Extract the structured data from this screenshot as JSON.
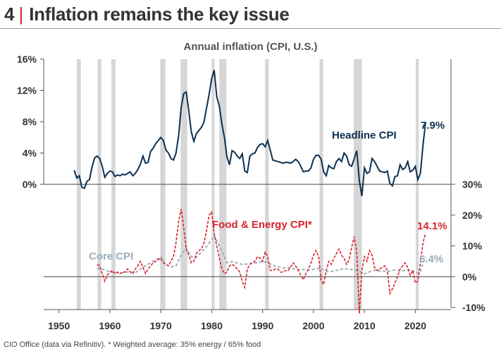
{
  "header": {
    "number": "4",
    "separator": "|",
    "title": "Inflation remains the key issue"
  },
  "footer": {
    "source": "CIO Office (data via Refinitiv).  * Weighted average: 35%  energy / 65%  food"
  },
  "colors": {
    "headline": "#0d3050",
    "food_energy": "#d9232d",
    "core": "#9aabb8",
    "recession": "#d6d6d6",
    "axis": "#555555"
  },
  "chart_data": {
    "type": "line",
    "title": "Annual inflation (CPI, U.S.)",
    "x_ticks": [
      1950,
      1960,
      1970,
      1980,
      1990,
      2000,
      2010,
      2020
    ],
    "xlim": [
      1947,
      2027
    ],
    "recessions": [
      [
        1953.5,
        1954.3
      ],
      [
        1957.6,
        1958.3
      ],
      [
        1960.3,
        1961.1
      ],
      [
        1969.9,
        1970.9
      ],
      [
        1973.9,
        1975.2
      ],
      [
        1980.0,
        1980.5
      ],
      [
        1981.5,
        1982.9
      ],
      [
        1990.5,
        1991.2
      ],
      [
        2001.2,
        2001.9
      ],
      [
        2007.9,
        2009.5
      ],
      [
        2020.1,
        2020.4
      ]
    ],
    "panels": [
      {
        "position": "top",
        "y_ticks_left": [
          "16%",
          "12%",
          "8%",
          "4%",
          "0%"
        ],
        "y_tick_values": [
          16,
          12,
          8,
          4,
          0
        ],
        "ylim": [
          0,
          16
        ],
        "series": [
          {
            "name": "Headline CPI",
            "end_label": "7.9%",
            "x": [
              1953.0,
              1953.5,
              1954.0,
              1954.5,
              1955.0,
              1955.5,
              1956.0,
              1956.5,
              1957.0,
              1957.5,
              1958.0,
              1958.5,
              1959.0,
              1959.5,
              1960.0,
              1960.5,
              1961.0,
              1961.5,
              1962.0,
              1962.5,
              1963.0,
              1963.5,
              1964.0,
              1964.5,
              1965.0,
              1965.5,
              1966.0,
              1966.5,
              1967.0,
              1967.5,
              1968.0,
              1968.5,
              1969.0,
              1969.5,
              1970.0,
              1970.5,
              1971.0,
              1971.5,
              1972.0,
              1972.5,
              1973.0,
              1973.5,
              1974.0,
              1974.5,
              1975.0,
              1975.5,
              1976.0,
              1976.5,
              1977.0,
              1977.5,
              1978.0,
              1978.5,
              1979.0,
              1979.5,
              1980.0,
              1980.5,
              1981.0,
              1981.5,
              1982.0,
              1982.5,
              1983.0,
              1983.5,
              1984.0,
              1984.5,
              1985.0,
              1985.5,
              1986.0,
              1986.5,
              1987.0,
              1987.5,
              1988.0,
              1988.5,
              1989.0,
              1989.5,
              1990.0,
              1990.5,
              1991.0,
              1991.5,
              1992.0,
              1992.5,
              1993.0,
              1993.5,
              1994.0,
              1994.5,
              1995.0,
              1995.5,
              1996.0,
              1996.5,
              1997.0,
              1997.5,
              1998.0,
              1998.5,
              1999.0,
              1999.5,
              2000.0,
              2000.5,
              2001.0,
              2001.5,
              2002.0,
              2002.5,
              2003.0,
              2003.5,
              2004.0,
              2004.5,
              2005.0,
              2005.5,
              2006.0,
              2006.5,
              2007.0,
              2007.5,
              2008.0,
              2008.5,
              2009.0,
              2009.5,
              2010.0,
              2010.5,
              2011.0,
              2011.5,
              2012.0,
              2012.5,
              2013.0,
              2013.5,
              2014.0,
              2014.5,
              2015.0,
              2015.5,
              2016.0,
              2016.5,
              2017.0,
              2017.5,
              2018.0,
              2018.5,
              2019.0,
              2019.5,
              2020.0,
              2020.5,
              2021.0,
              2021.5,
              2022.0
            ],
            "values": [
              1.8,
              0.8,
              1.1,
              -0.4,
              -0.5,
              0.4,
              0.6,
              2.2,
              3.4,
              3.6,
              3.3,
              2.3,
              0.9,
              1.4,
              1.7,
              1.6,
              1.0,
              1.2,
              1.1,
              1.3,
              1.2,
              1.4,
              1.6,
              1.1,
              1.4,
              1.9,
              2.6,
              3.6,
              2.7,
              2.8,
              4.2,
              4.6,
              5.2,
              5.6,
              6.0,
              5.6,
              4.4,
              4.0,
              3.3,
              3.1,
              4.0,
              6.2,
              9.8,
              11.6,
              11.8,
              9.4,
              6.7,
              5.5,
              6.5,
              6.9,
              7.3,
              8.0,
              9.8,
              11.5,
              13.5,
              14.6,
              11.2,
              10.0,
              7.7,
              6.0,
              3.5,
              2.5,
              4.3,
              4.1,
              3.6,
              3.3,
              3.9,
              1.7,
              1.5,
              3.6,
              3.9,
              4.0,
              4.7,
              5.1,
              5.2,
              4.8,
              5.6,
              4.4,
              3.1,
              3.0,
              2.9,
              2.8,
              2.7,
              2.8,
              2.8,
              2.7,
              2.9,
              3.2,
              2.9,
              2.3,
              1.6,
              1.7,
              1.7,
              2.1,
              3.2,
              3.7,
              3.7,
              3.2,
              1.6,
              1.1,
              2.4,
              2.1,
              2.0,
              2.9,
              3.3,
              2.9,
              4.0,
              3.6,
              2.5,
              2.3,
              3.3,
              4.3,
              0.5,
              -1.5,
              2.1,
              1.4,
              1.6,
              3.3,
              2.9,
              2.3,
              1.7,
              1.6,
              1.5,
              1.7,
              0.1,
              -0.2,
              1.0,
              1.1,
              2.5,
              1.9,
              2.1,
              2.9,
              1.6,
              1.8,
              2.3,
              0.6,
              1.4,
              5.0,
              7.9
            ]
          }
        ]
      },
      {
        "position": "bottom",
        "y_ticks_right": [
          "30%",
          "20%",
          "10%",
          "0%",
          "-10%"
        ],
        "y_tick_values": [
          30,
          20,
          10,
          0,
          -10
        ],
        "ylim": [
          -10,
          30
        ],
        "series": [
          {
            "name": "Food & Energy CPI*",
            "end_label": "14.1%",
            "x": [
              1957.5,
              1958.0,
              1958.5,
              1959.0,
              1959.5,
              1960.0,
              1960.5,
              1961.0,
              1961.5,
              1962.0,
              1962.5,
              1963.0,
              1963.5,
              1964.0,
              1964.5,
              1965.0,
              1965.5,
              1966.0,
              1966.5,
              1967.0,
              1967.5,
              1968.0,
              1968.5,
              1969.0,
              1969.5,
              1970.0,
              1970.5,
              1971.0,
              1971.5,
              1972.0,
              1972.5,
              1973.0,
              1973.5,
              1974.0,
              1974.5,
              1975.0,
              1975.5,
              1976.0,
              1976.5,
              1977.0,
              1977.5,
              1978.0,
              1978.5,
              1979.0,
              1979.5,
              1980.0,
              1980.5,
              1981.0,
              1981.5,
              1982.0,
              1982.5,
              1983.0,
              1983.5,
              1984.0,
              1984.5,
              1985.0,
              1985.5,
              1986.0,
              1986.5,
              1987.0,
              1987.5,
              1988.0,
              1988.5,
              1989.0,
              1989.5,
              1990.0,
              1990.5,
              1991.0,
              1991.5,
              1992.0,
              1992.5,
              1993.0,
              1993.5,
              1994.0,
              1994.5,
              1995.0,
              1995.5,
              1996.0,
              1996.5,
              1997.0,
              1997.5,
              1998.0,
              1998.5,
              1999.0,
              1999.5,
              2000.0,
              2000.5,
              2001.0,
              2001.5,
              2002.0,
              2002.5,
              2003.0,
              2003.5,
              2004.0,
              2004.5,
              2005.0,
              2005.5,
              2006.0,
              2006.5,
              2007.0,
              2007.5,
              2008.0,
              2008.5,
              2009.0,
              2009.5,
              2010.0,
              2010.5,
              2011.0,
              2011.5,
              2012.0,
              2012.5,
              2013.0,
              2013.5,
              2014.0,
              2014.5,
              2015.0,
              2015.5,
              2016.0,
              2016.5,
              2017.0,
              2017.5,
              2018.0,
              2018.5,
              2019.0,
              2019.5,
              2020.0,
              2020.5,
              2021.0,
              2021.5,
              2022.0
            ],
            "values": [
              4.0,
              3.5,
              1.0,
              -1.5,
              0.5,
              1.5,
              2.0,
              1.0,
              1.5,
              1.0,
              1.5,
              1.5,
              2.5,
              1.5,
              1.0,
              2.5,
              3.5,
              5.0,
              3.0,
              1.0,
              2.5,
              3.5,
              4.5,
              5.0,
              5.5,
              6.0,
              4.5,
              4.0,
              3.5,
              5.0,
              6.5,
              11.0,
              18.0,
              22.0,
              16.0,
              9.0,
              7.0,
              4.5,
              5.0,
              7.5,
              8.5,
              9.0,
              11.0,
              15.0,
              20.0,
              21.0,
              14.0,
              10.0,
              6.0,
              2.5,
              1.0,
              1.5,
              3.5,
              4.0,
              3.5,
              2.5,
              1.5,
              -1.5,
              -3.5,
              2.5,
              4.0,
              4.5,
              5.0,
              6.5,
              6.0,
              5.0,
              8.0,
              6.5,
              2.0,
              2.0,
              2.5,
              2.5,
              1.5,
              1.5,
              2.0,
              2.0,
              3.0,
              4.5,
              3.5,
              2.0,
              0.5,
              -1.0,
              1.0,
              2.5,
              4.5,
              7.0,
              8.5,
              6.5,
              -1.5,
              -2.5,
              2.0,
              5.0,
              4.0,
              6.0,
              7.5,
              9.0,
              7.0,
              6.0,
              4.0,
              5.5,
              9.5,
              13.0,
              8.0,
              -12.0,
              2.0,
              6.5,
              5.0,
              8.5,
              7.0,
              3.0,
              2.0,
              2.5,
              3.0,
              3.5,
              2.0,
              -5.5,
              -4.0,
              -2.0,
              0.0,
              2.5,
              3.5,
              4.5,
              3.0,
              0.5,
              2.0,
              -2.0,
              -1.5,
              4.5,
              11.0,
              14.1
            ]
          },
          {
            "name": "Core CPI",
            "end_label": "6.4%",
            "x": [
              1957.5,
              1958.0,
              1959.0,
              1960.0,
              1961.0,
              1962.0,
              1963.0,
              1964.0,
              1965.0,
              1966.0,
              1967.0,
              1968.0,
              1969.0,
              1970.0,
              1971.0,
              1972.0,
              1973.0,
              1974.0,
              1975.0,
              1976.0,
              1977.0,
              1978.0,
              1979.0,
              1980.0,
              1980.5,
              1981.0,
              1982.0,
              1983.0,
              1984.0,
              1985.0,
              1986.0,
              1987.0,
              1988.0,
              1989.0,
              1990.0,
              1991.0,
              1992.0,
              1993.0,
              1994.0,
              1995.0,
              1996.0,
              1997.0,
              1998.0,
              1999.0,
              2000.0,
              2001.0,
              2002.0,
              2003.0,
              2004.0,
              2005.0,
              2006.0,
              2007.0,
              2008.0,
              2009.0,
              2010.0,
              2011.0,
              2012.0,
              2013.0,
              2014.0,
              2015.0,
              2016.0,
              2017.0,
              2018.0,
              2019.0,
              2020.0,
              2020.5,
              2021.0,
              2021.5,
              2022.0
            ],
            "values": [
              2.5,
              2.8,
              2.2,
              1.5,
              1.3,
              1.2,
              1.4,
              1.6,
              1.3,
              2.5,
              3.5,
              4.5,
              5.6,
              6.4,
              4.0,
              3.2,
              3.5,
              7.0,
              9.3,
              6.5,
              6.3,
              8.0,
              9.8,
              12.0,
              13.5,
              11.5,
              8.5,
              4.5,
              4.9,
              4.5,
              4.0,
              4.1,
              4.4,
              4.5,
              5.0,
              4.5,
              3.7,
              3.3,
              2.8,
              3.0,
              2.6,
              2.4,
              2.3,
              2.1,
              2.4,
              2.7,
              2.3,
              1.5,
              1.9,
              2.2,
              2.7,
              2.4,
              2.3,
              1.8,
              0.9,
              1.6,
              2.1,
              1.8,
              1.7,
              1.8,
              2.2,
              1.8,
              2.1,
              2.3,
              1.6,
              1.2,
              1.4,
              4.5,
              6.4
            ]
          }
        ]
      }
    ]
  }
}
